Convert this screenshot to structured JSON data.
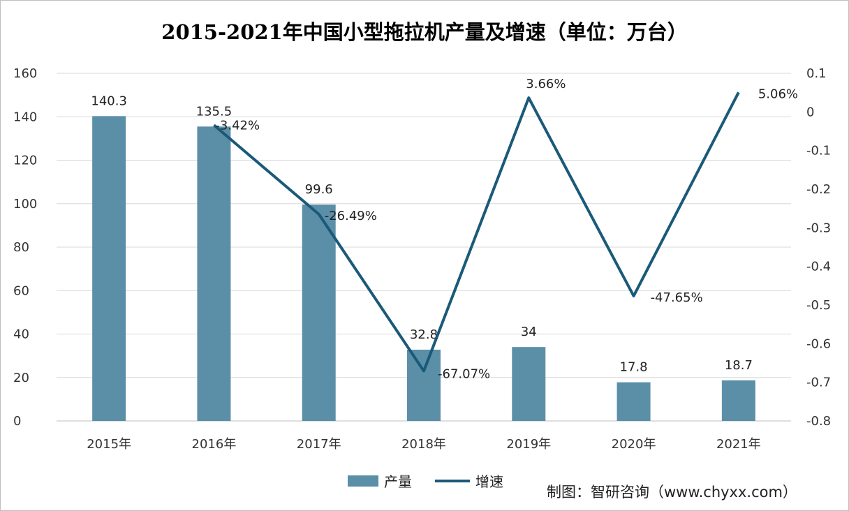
{
  "title": "2015-2021年中国小型拖拉机产量及增速（单位：万台）",
  "source": "制图：智研咨询（www.chyxx.com）",
  "colors": {
    "bar": "#5b8fa8",
    "line": "#1a5a78",
    "grid": "#d9d9d9"
  },
  "chart_data": {
    "type": "bar+line",
    "categories": [
      "2015年",
      "2016年",
      "2017年",
      "2018年",
      "2019年",
      "2020年",
      "2021年"
    ],
    "series": [
      {
        "name": "产量",
        "type": "bar",
        "axis": "left",
        "values": [
          140.3,
          135.5,
          99.6,
          32.8,
          34,
          17.8,
          18.7
        ],
        "labels": [
          "140.3",
          "135.5",
          "99.6",
          "32.8",
          "34",
          "17.8",
          "18.7"
        ]
      },
      {
        "name": "增速",
        "type": "line",
        "axis": "right",
        "values": [
          null,
          -0.0342,
          -0.2649,
          -0.6707,
          0.0366,
          -0.4765,
          0.0506
        ],
        "labels": [
          "",
          "-3.42%",
          "-26.49%",
          "-67.07%",
          "3.66%",
          "-47.65%",
          "5.06%"
        ]
      }
    ],
    "y_left": {
      "ylim": [
        0,
        160
      ],
      "ticks": [
        "0",
        "20",
        "40",
        "60",
        "80",
        "100",
        "120",
        "140",
        "160"
      ]
    },
    "y_right": {
      "ylim": [
        -0.8,
        0.1
      ],
      "ticks": [
        "-0.8",
        "-0.7",
        "-0.6",
        "-0.5",
        "-0.4",
        "-0.3",
        "-0.2",
        "-0.1",
        "0",
        "0.1"
      ]
    },
    "grid": true,
    "legend": "bottom"
  }
}
